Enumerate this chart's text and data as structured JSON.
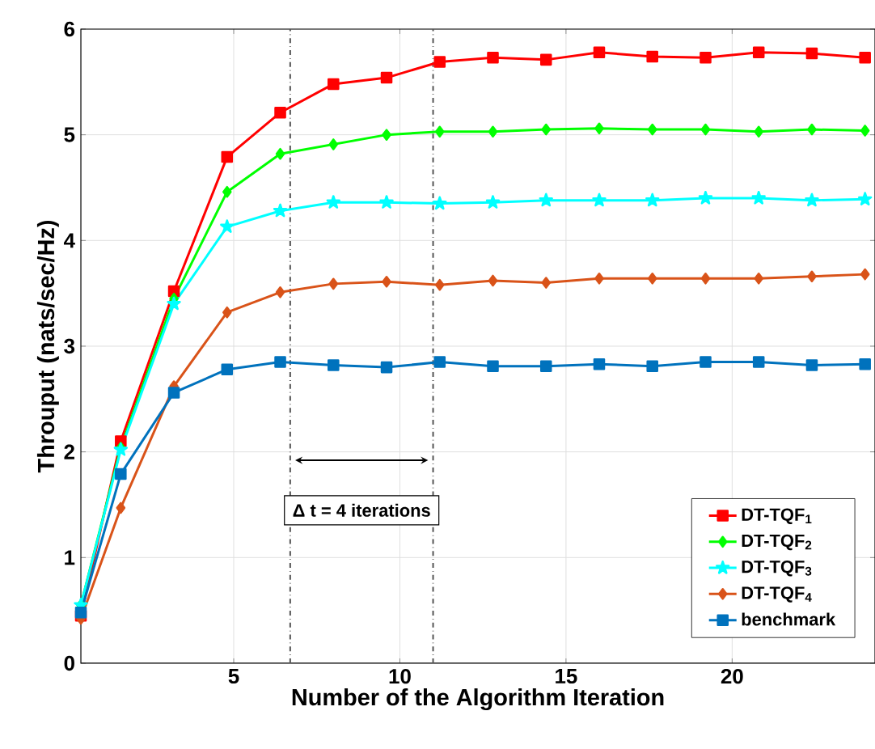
{
  "chart_data": {
    "type": "line",
    "xlabel": "Number of the Algorithm Iteration",
    "ylabel": "Throuput (nats/sec/Hz)",
    "x": [
      0.4,
      1.6,
      3.2,
      4.8,
      6.4,
      8.0,
      9.6,
      11.2,
      12.8,
      14.4,
      16.0,
      17.6,
      19.2,
      20.8,
      22.4,
      24.0
    ],
    "series": [
      {
        "name": "DT-TQF$_{1}$",
        "color": "#ff0000",
        "marker": "square",
        "values": [
          0.45,
          2.1,
          3.52,
          4.79,
          5.21,
          5.48,
          5.54,
          5.69,
          5.73,
          5.71,
          5.78,
          5.74,
          5.73,
          5.78,
          5.77,
          5.73
        ]
      },
      {
        "name": "DT-TQF$_{2}$",
        "color": "#00ff00",
        "marker": "diamond",
        "values": [
          0.55,
          2.04,
          3.45,
          4.46,
          4.82,
          4.91,
          5.0,
          5.03,
          5.03,
          5.05,
          5.06,
          5.05,
          5.05,
          5.03,
          5.05,
          5.04
        ]
      },
      {
        "name": "DT-TQF$_{3}$",
        "color": "#00ffff",
        "marker": "star",
        "values": [
          0.55,
          2.02,
          3.4,
          4.13,
          4.28,
          4.36,
          4.36,
          4.35,
          4.36,
          4.38,
          4.38,
          4.38,
          4.4,
          4.4,
          4.38,
          4.39
        ]
      },
      {
        "name": "DT-TQF$_{4}$",
        "color": "#d95319",
        "marker": "diamond",
        "values": [
          0.42,
          1.47,
          2.62,
          3.32,
          3.51,
          3.59,
          3.61,
          3.58,
          3.62,
          3.6,
          3.64,
          3.64,
          3.64,
          3.64,
          3.66,
          3.68
        ]
      },
      {
        "name": "benchmark",
        "color": "#0072bd",
        "marker": "square",
        "values": [
          0.48,
          1.79,
          2.56,
          2.78,
          2.85,
          2.82,
          2.8,
          2.85,
          2.81,
          2.81,
          2.83,
          2.81,
          2.85,
          2.85,
          2.82,
          2.83
        ]
      }
    ],
    "xlim": [
      0.4,
      24.3
    ],
    "ylim": [
      0,
      6
    ],
    "xticks": [
      5,
      10,
      15,
      20
    ],
    "yticks": [
      0,
      1,
      2,
      3,
      4,
      5,
      6
    ],
    "grid": true,
    "legend": "bottom right",
    "line_style": "solid",
    "ref_lines": [
      {
        "axis": "x",
        "value": 6.7,
        "color": "#555555",
        "line_style": "dashdotted"
      },
      {
        "axis": "x",
        "value": 11.0,
        "color": "#555555",
        "line_style": "dashdotted"
      }
    ],
    "annotations": [
      "Δ t = 4 iterations"
    ]
  }
}
